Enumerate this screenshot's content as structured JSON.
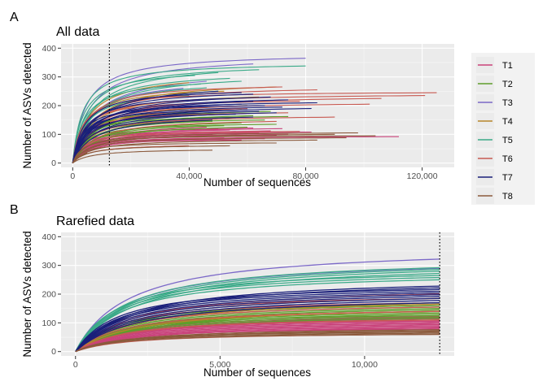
{
  "chart_data": [
    {
      "type": "line",
      "tag": "A",
      "title": "All data",
      "xlabel": "Number of sequences",
      "ylabel": "Number of ASVs detected",
      "xlim": [
        -4000,
        131000
      ],
      "ylim": [
        -15,
        415
      ],
      "x_ticks": [
        0,
        40000,
        80000,
        120000
      ],
      "x_tick_labels": [
        "0",
        "40,000",
        "80,000",
        "120,000"
      ],
      "y_ticks": [
        0,
        100,
        200,
        300,
        400
      ],
      "y_tick_labels": [
        "0",
        "100",
        "200",
        "300",
        "400"
      ],
      "vline_x": 12600,
      "grid": true,
      "series": [
        {
          "name": "T1",
          "color": "#c9437b",
          "plateaus": [
            80,
            85,
            88,
            90,
            92,
            95,
            98,
            100,
            102,
            105,
            108,
            110,
            112,
            115,
            118,
            120,
            122,
            125
          ],
          "max_x": [
            58000,
            66000,
            52000,
            88000,
            112000,
            70000,
            48000,
            74000,
            60000,
            64000,
            82000,
            56000,
            68000,
            54000,
            50000,
            72000,
            62000,
            46000
          ]
        },
        {
          "name": "T2",
          "color": "#5e9e2b",
          "plateaus": [
            118,
            125,
            130,
            135,
            140,
            145,
            150,
            155,
            158,
            162,
            165,
            170,
            175,
            180,
            185,
            188
          ],
          "max_x": [
            42000,
            60000,
            52000,
            70000,
            58000,
            48000,
            66000,
            56000,
            50000,
            74000,
            62000,
            54000,
            46000,
            68000,
            58000,
            52000
          ]
        },
        {
          "name": "T3",
          "color": "#7b68c8",
          "plateaus": [
            345,
            365,
            285,
            260
          ],
          "max_x": [
            62000,
            80000,
            46000,
            38000
          ]
        },
        {
          "name": "T4",
          "color": "#b8862b",
          "plateaus": [
            200,
            230,
            250,
            265,
            280
          ],
          "max_x": [
            60000,
            64000,
            52000,
            70000,
            40000
          ]
        },
        {
          "name": "T5",
          "color": "#3aaa88",
          "plateaus": [
            235,
            250,
            262,
            275,
            285,
            295,
            305,
            315,
            325,
            338
          ],
          "max_x": [
            40000,
            50000,
            46000,
            44000,
            58000,
            54000,
            42000,
            50000,
            64000,
            80000
          ]
        },
        {
          "name": "T6",
          "color": "#c85a52",
          "plateaus": [
            60,
            110,
            145,
            160,
            175,
            190,
            205,
            215,
            225,
            235,
            245,
            255,
            265
          ],
          "max_x": [
            40000,
            78000,
            70000,
            90000,
            74000,
            60000,
            102000,
            78000,
            106000,
            121000,
            125000,
            84000,
            72000
          ]
        },
        {
          "name": "T7",
          "color": "#1a1f7a",
          "plateaus": [
            150,
            160,
            170,
            175,
            180,
            185,
            190,
            195,
            200,
            205,
            210,
            215,
            220,
            225,
            230,
            240,
            245,
            250
          ],
          "max_x": [
            48000,
            62000,
            56000,
            70000,
            64000,
            60000,
            82000,
            72000,
            66000,
            58000,
            84000,
            62000,
            74000,
            54000,
            68000,
            62000,
            58000,
            50000
          ]
        },
        {
          "name": "T8",
          "color": "#8b5a3c",
          "plateaus": [
            35,
            45,
            60,
            70,
            80,
            88,
            95,
            100,
            105
          ],
          "max_x": [
            5000,
            48000,
            54000,
            70000,
            84000,
            94000,
            104000,
            90000,
            98000
          ]
        }
      ]
    },
    {
      "type": "line",
      "tag": "B",
      "title": "Rarefied data",
      "xlabel": "Number of sequences",
      "ylabel": "Number of ASVs detected",
      "xlim": [
        -500,
        13100
      ],
      "ylim": [
        -15,
        415
      ],
      "x_ticks": [
        0,
        5000,
        10000
      ],
      "x_tick_labels": [
        "0",
        "5,000",
        "10,000"
      ],
      "y_ticks": [
        0,
        100,
        200,
        300,
        400
      ],
      "y_tick_labels": [
        "0",
        "100",
        "200",
        "300",
        "400"
      ],
      "vline_x": 12600,
      "max_x": 12600,
      "grid": true,
      "series": [
        {
          "name": "T1",
          "color": "#c9437b",
          "end_values": [
            78,
            82,
            86,
            90,
            94,
            98,
            102,
            106,
            110,
            114,
            118,
            122
          ]
        },
        {
          "name": "T2",
          "color": "#5e9e2b",
          "end_values": [
            115,
            120,
            125,
            130,
            135,
            140,
            145,
            150,
            155,
            160,
            165,
            170
          ]
        },
        {
          "name": "T3",
          "color": "#7b68c8",
          "end_values": [
            322,
            290
          ]
        },
        {
          "name": "T4",
          "color": "#b8862b",
          "end_values": [
            140,
            165,
            185
          ]
        },
        {
          "name": "T5",
          "color": "#3aaa88",
          "end_values": [
            250,
            258,
            265,
            272,
            280,
            286,
            292
          ]
        },
        {
          "name": "T6",
          "color": "#c85a52",
          "end_values": [
            60,
            110,
            140,
            155,
            170,
            185,
            200
          ]
        },
        {
          "name": "T7",
          "color": "#1a1f7a",
          "end_values": [
            170,
            178,
            185,
            192,
            198,
            204,
            210,
            216,
            222,
            228
          ]
        },
        {
          "name": "T8",
          "color": "#8b5a3c",
          "end_values": [
            60,
            64,
            68,
            72,
            76
          ]
        }
      ]
    }
  ],
  "legend": {
    "placement": "right",
    "entries": [
      {
        "name": "T1",
        "color": "#c9437b"
      },
      {
        "name": "T2",
        "color": "#5e9e2b"
      },
      {
        "name": "T3",
        "color": "#7b68c8"
      },
      {
        "name": "T4",
        "color": "#b8862b"
      },
      {
        "name": "T5",
        "color": "#3aaa88"
      },
      {
        "name": "T6",
        "color": "#c85a52"
      },
      {
        "name": "T7",
        "color": "#1a1f7a"
      },
      {
        "name": "T8",
        "color": "#8b5a3c"
      }
    ]
  }
}
